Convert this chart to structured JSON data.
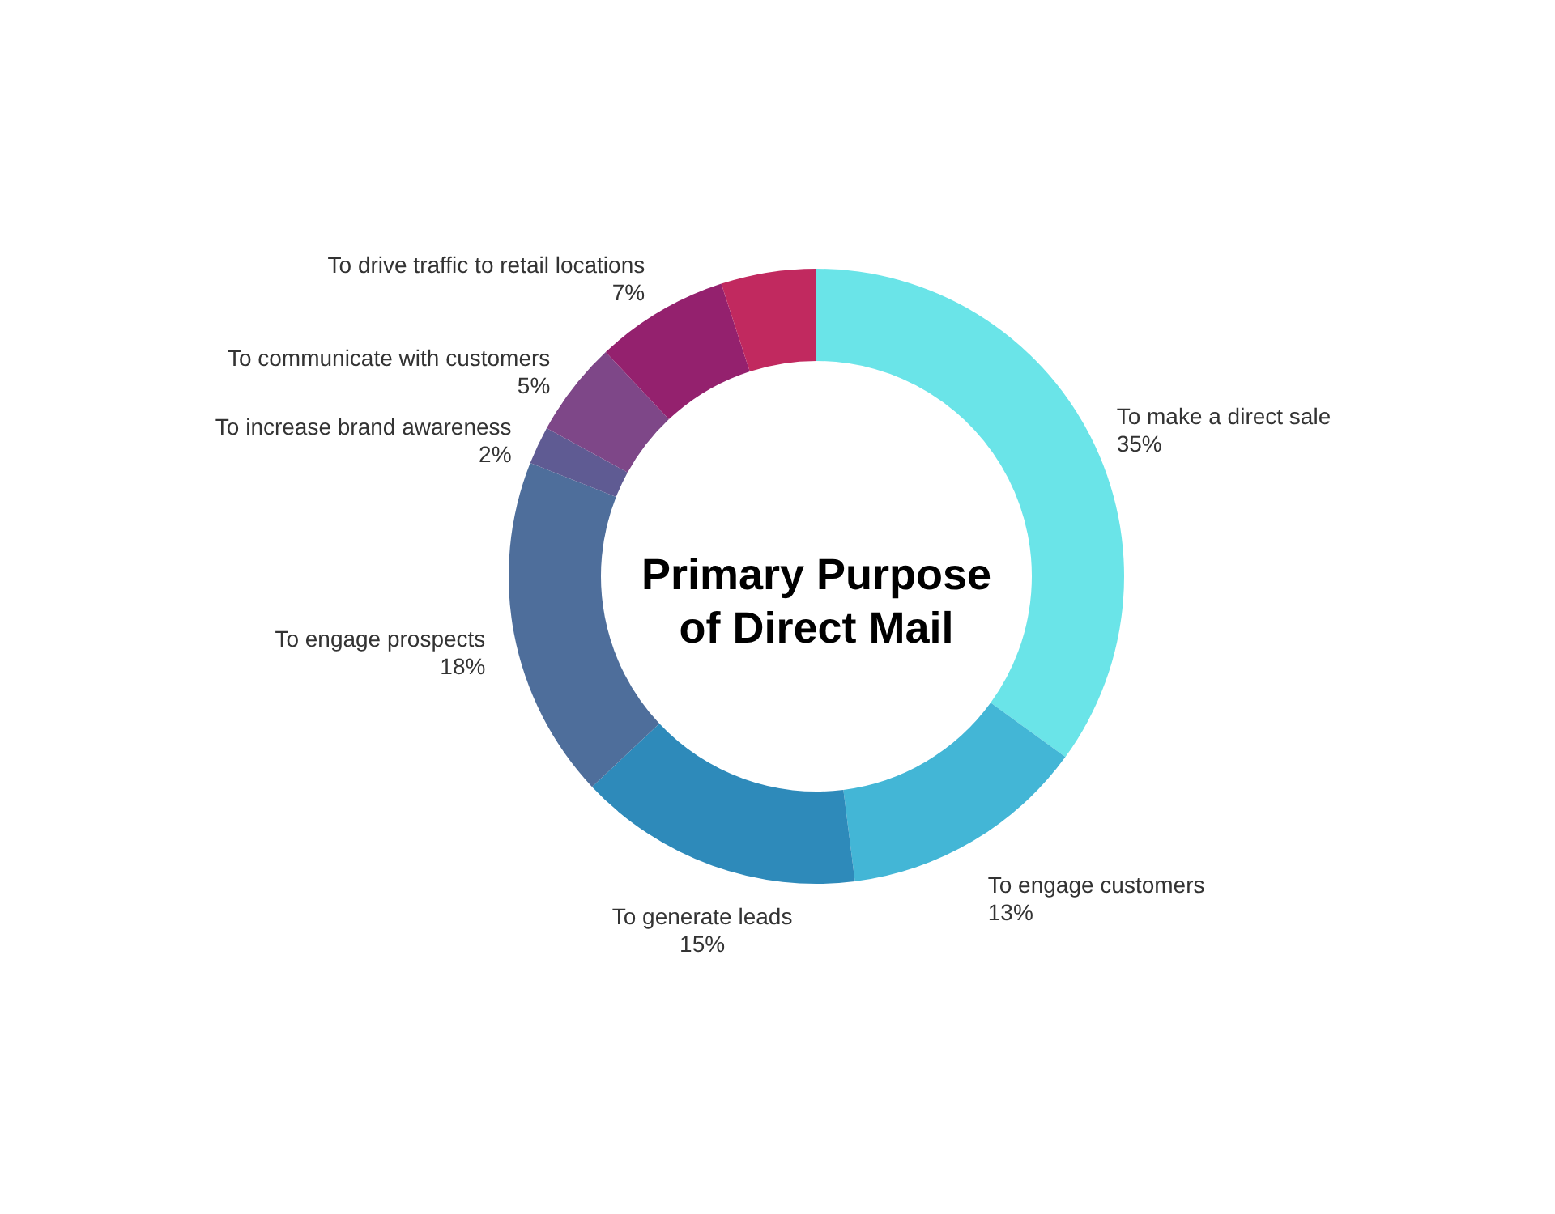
{
  "chart_data": {
    "type": "donut",
    "title": "Primary Purpose of Direct Mail",
    "categories": [
      "To make a direct sale",
      "To engage customers",
      "To generate leads",
      "To engage prospects",
      "To increase brand awareness",
      "To communicate with customers",
      "To drive traffic to retail locations",
      null
    ],
    "values": [
      35,
      13,
      15,
      18,
      2,
      5,
      7,
      5
    ],
    "value_labels": [
      "35%",
      "13%",
      "15%",
      "18%",
      "2%",
      "5%",
      "7%",
      null
    ],
    "colors": [
      "#6ae4e8",
      "#43b6d6",
      "#2e8aba",
      "#4e6e9b",
      "#5f5b93",
      "#7e4788",
      "#94216e",
      "#c1295f"
    ]
  }
}
